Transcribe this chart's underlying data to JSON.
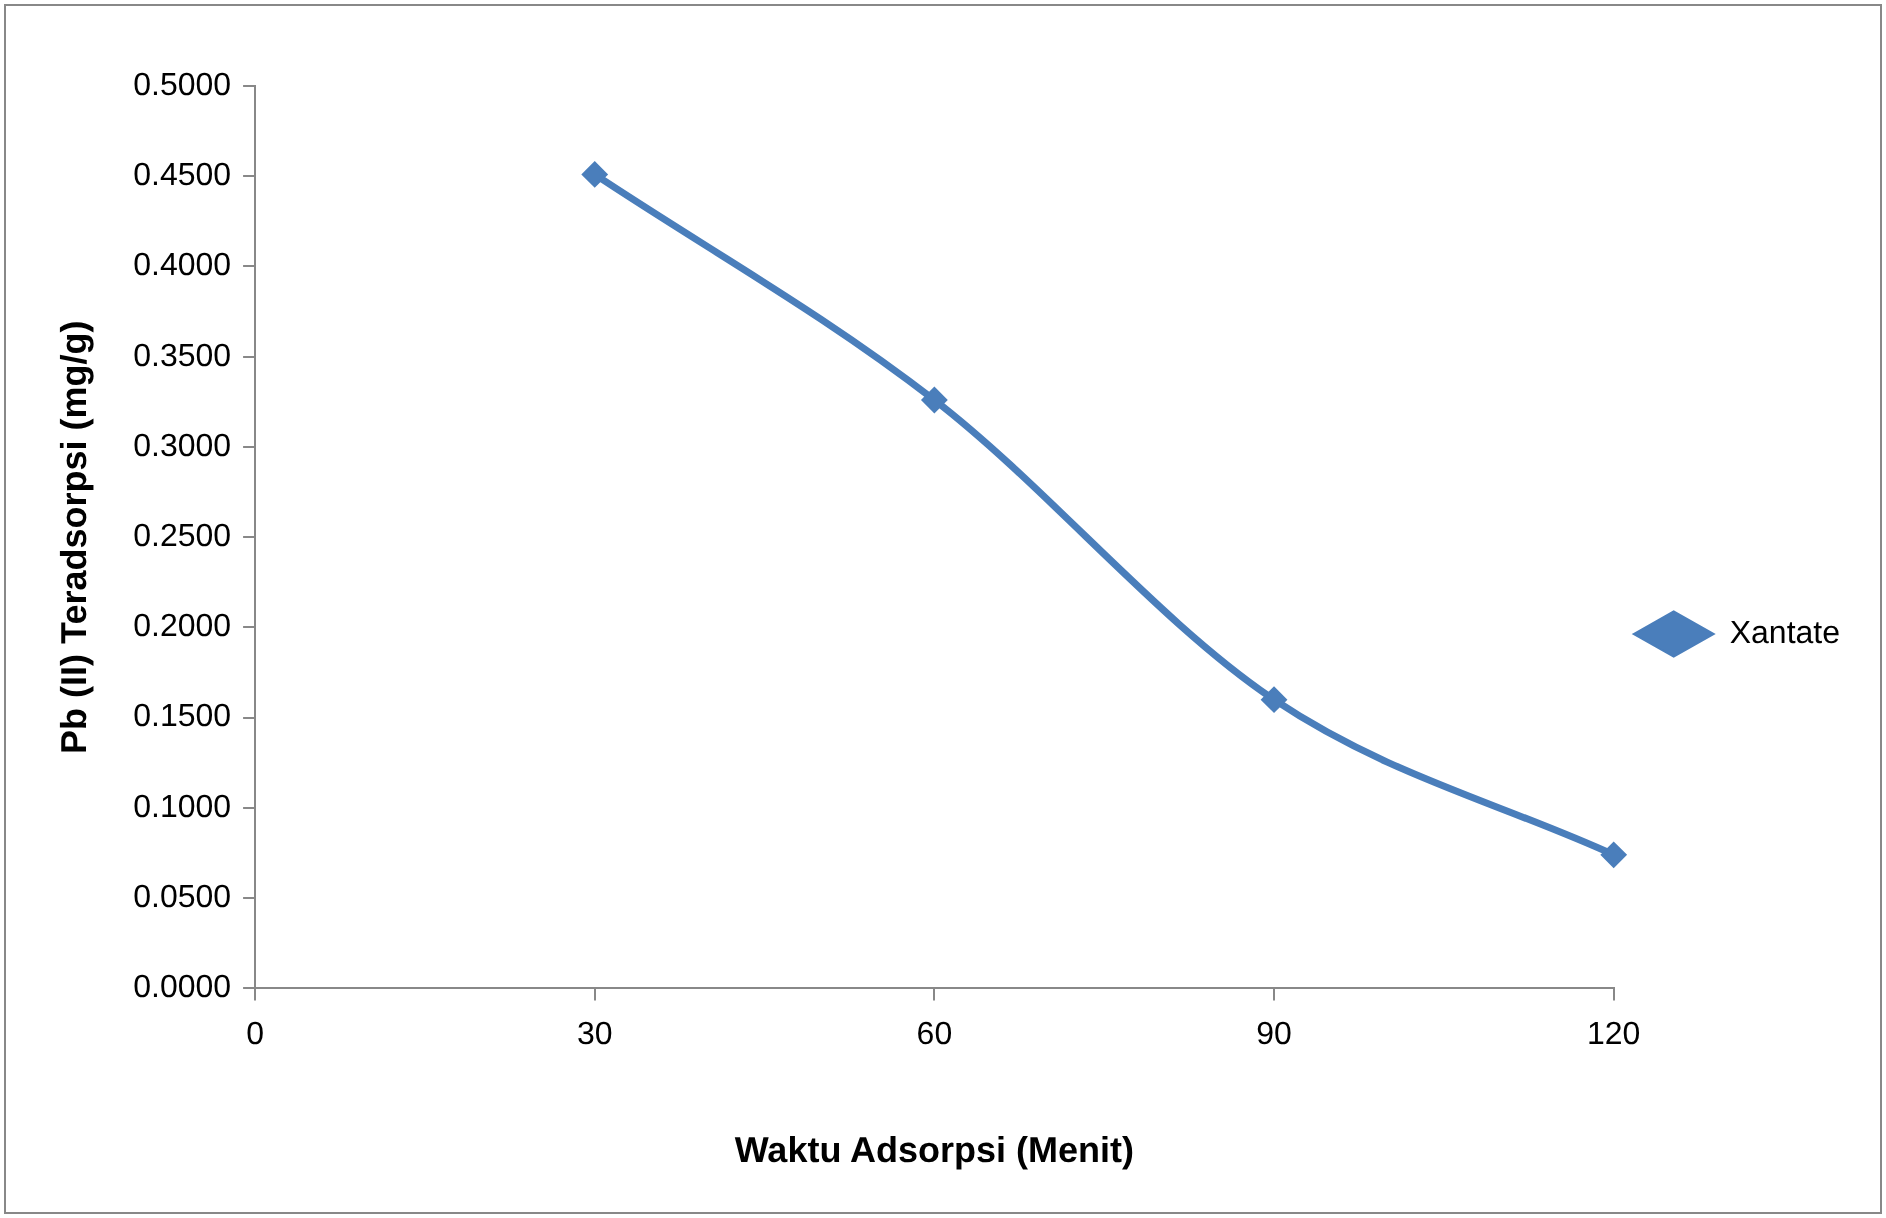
{
  "chart_data": {
    "type": "line",
    "xlabel": "Waktu Adsorpsi (Menit)",
    "ylabel": "Pb (II) Teradsorpsi (mg/g)",
    "x": [
      30,
      60,
      90,
      120
    ],
    "series": [
      {
        "name": "Xantate",
        "color": "#4a7ebb",
        "values": [
          0.451,
          0.326,
          0.16,
          0.074
        ]
      }
    ],
    "xlim": [
      0,
      120
    ],
    "xticks": [
      0,
      30,
      60,
      90,
      120
    ],
    "ylim": [
      0,
      0.5
    ],
    "yticks": [
      {
        "value": 0,
        "label": "0.0000"
      },
      {
        "value": 0.05,
        "label": "0.0500"
      },
      {
        "value": 0.1,
        "label": "0.1000"
      },
      {
        "value": 0.15,
        "label": "0.1500"
      },
      {
        "value": 0.2,
        "label": "0.2000"
      },
      {
        "value": 0.25,
        "label": "0.2500"
      },
      {
        "value": 0.3,
        "label": "0.3000"
      },
      {
        "value": 0.35,
        "label": "0.3500"
      },
      {
        "value": 0.4,
        "label": "0.4000"
      },
      {
        "value": 0.45,
        "label": "0.4500"
      },
      {
        "value": 0.5,
        "label": "0.5000"
      }
    ],
    "grid": false,
    "legend": "right",
    "marker": "diamond",
    "line_style": "solid"
  }
}
